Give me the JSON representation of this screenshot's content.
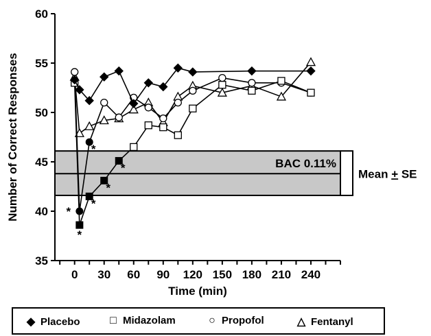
{
  "chart_data": {
    "type": "line",
    "title": "",
    "xlabel": "Time (min)",
    "ylabel": "Number of Correct Responses",
    "xlim": [
      -20,
      270
    ],
    "ylim": [
      35,
      60
    ],
    "xticks": [
      0,
      30,
      60,
      90,
      120,
      150,
      180,
      210,
      240
    ],
    "yticks": [
      35,
      40,
      45,
      50,
      55,
      60
    ],
    "grid": false,
    "legend_position": "bottom",
    "band": {
      "label": "BAC 0.11%",
      "mean": 43.8,
      "lower": 41.6,
      "upper": 46.1,
      "bracket_label": "Mean + SE"
    },
    "series": [
      {
        "name": "Placebo",
        "marker": "diamond",
        "x": [
          0,
          5,
          15,
          30,
          45,
          60,
          75,
          90,
          105,
          120,
          180,
          240
        ],
        "y": [
          53.3,
          52.3,
          51.2,
          53.6,
          54.2,
          50.9,
          53.0,
          52.6,
          54.5,
          54.1,
          54.2,
          54.2
        ]
      },
      {
        "name": "Midazolam",
        "marker": "square",
        "x": [
          0,
          5,
          15,
          30,
          45,
          60,
          75,
          90,
          105,
          120,
          150,
          180,
          210,
          240
        ],
        "y": [
          53.0,
          38.6,
          41.5,
          43.1,
          45.1,
          46.5,
          48.7,
          48.5,
          47.7,
          50.4,
          52.8,
          52.2,
          53.2,
          52.0
        ]
      },
      {
        "name": "Propofol",
        "marker": "circle",
        "x": [
          0,
          5,
          15,
          30,
          45,
          60,
          75,
          90,
          105,
          120,
          150,
          180,
          210,
          240
        ],
        "y": [
          54.1,
          40.0,
          47.0,
          51.0,
          49.5,
          51.5,
          50.5,
          49.4,
          51.0,
          52.2,
          53.5,
          53.0,
          53.0,
          52.0
        ]
      },
      {
        "name": "Fentanyl",
        "marker": "triangle",
        "x": [
          0,
          5,
          15,
          30,
          45,
          60,
          75,
          90,
          105,
          120,
          150,
          180,
          210,
          240
        ],
        "y": [
          53.6,
          47.9,
          48.6,
          49.2,
          49.4,
          50.3,
          51.0,
          49.0,
          51.6,
          52.7,
          52.0,
          52.7,
          51.6,
          55.1
        ]
      }
    ],
    "annotations": [
      {
        "text": "*",
        "x": 15,
        "y": 47.0,
        "anchor": "below-right"
      },
      {
        "text": "*",
        "x": 5,
        "y": 40.0,
        "anchor": "left"
      },
      {
        "text": "*",
        "x": 5,
        "y": 38.6,
        "anchor": "below"
      },
      {
        "text": "*",
        "x": 15,
        "y": 41.5,
        "anchor": "below-right"
      },
      {
        "text": "*",
        "x": 30,
        "y": 43.1,
        "anchor": "below-right"
      },
      {
        "text": "*",
        "x": 45,
        "y": 45.1,
        "anchor": "below-right"
      }
    ]
  }
}
